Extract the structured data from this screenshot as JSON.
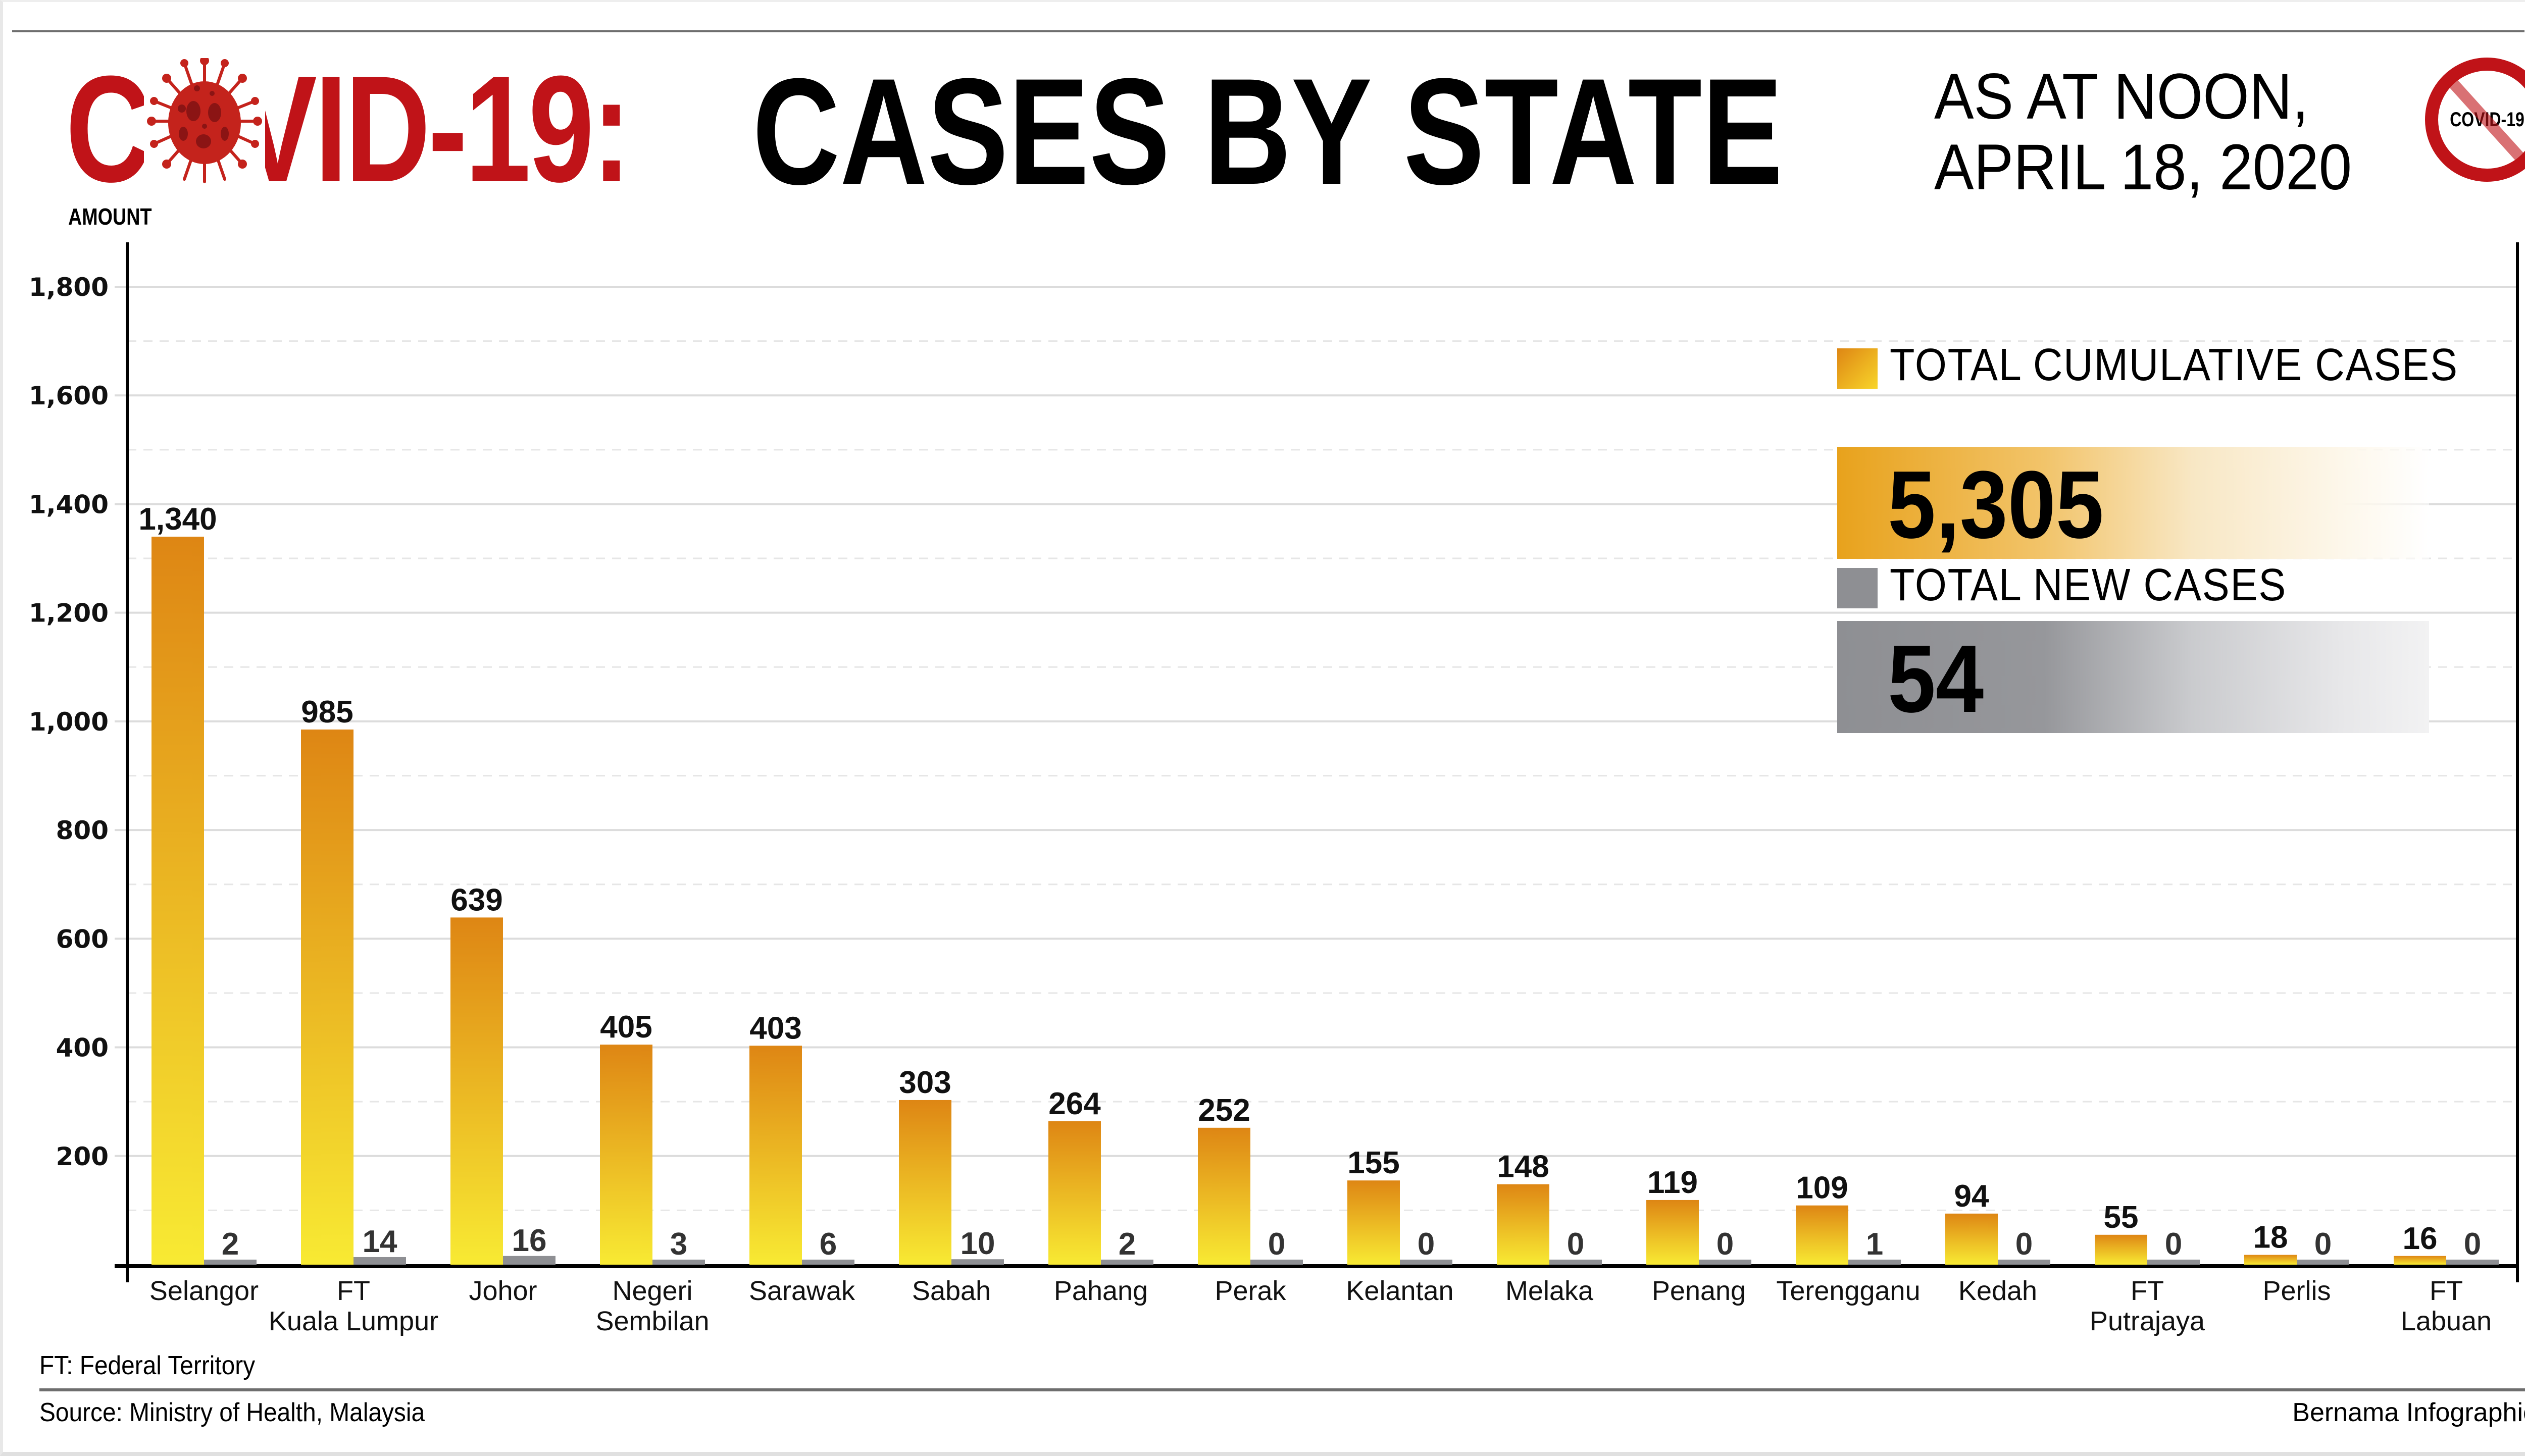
{
  "header": {
    "title_covid": "COVID-19:",
    "title_main": "CASES BY STATE",
    "date_line1": "AS AT NOON,",
    "date_line2": "APRIL 18, 2020",
    "badge_text": "COVID-19",
    "badge_icon": "no-covid-icon",
    "virus_icon": "virus-icon"
  },
  "legend": {
    "cumulative": {
      "label": "TOTAL CUMULATIVE CASES",
      "value": "5,305",
      "color": "#e8a21c"
    },
    "new": {
      "label": "TOTAL NEW CASES",
      "value": "54",
      "color": "#8e8f93"
    }
  },
  "footer": {
    "note": "FT: Federal Territory",
    "source": "Source: Ministry of Health, Malaysia",
    "credit": "Bernama Infographics"
  },
  "colors": {
    "title_red": "#c01318",
    "bar_top": "#de8614",
    "bar_bottom": "#f8ea33",
    "new_bar": "#8e8f93",
    "grid": "#dcdcdc"
  },
  "chart_data": {
    "type": "bar",
    "title": "COVID-19: CASES BY STATE",
    "ylabel": "AMOUNT",
    "xlabel": "",
    "ylim": [
      0,
      1800
    ],
    "yticks": [
      200,
      400,
      600,
      800,
      1000,
      1200,
      1400,
      1600,
      1800
    ],
    "ytick_labels": [
      "200",
      "400",
      "600",
      "800",
      "1,000",
      "1,200",
      "1,400",
      "1,600",
      "1,800"
    ],
    "grid": true,
    "legend_position": "top-right",
    "categories": [
      [
        "Selangor"
      ],
      [
        "FT",
        "Kuala Lumpur"
      ],
      [
        "Johor"
      ],
      [
        "Negeri",
        "Sembilan"
      ],
      [
        "Sarawak"
      ],
      [
        "Sabah"
      ],
      [
        "Pahang"
      ],
      [
        "Perak"
      ],
      [
        "Kelantan"
      ],
      [
        "Melaka"
      ],
      [
        "Penang"
      ],
      [
        "Terengganu"
      ],
      [
        "Kedah"
      ],
      [
        "FT",
        "Putrajaya"
      ],
      [
        "Perlis"
      ],
      [
        "FT",
        "Labuan"
      ]
    ],
    "series": [
      {
        "name": "Total cumulative cases",
        "values": [
          1340,
          985,
          639,
          405,
          403,
          303,
          264,
          252,
          155,
          148,
          119,
          109,
          94,
          55,
          18,
          16
        ],
        "labels": [
          "1,340",
          "985",
          "639",
          "405",
          "403",
          "303",
          "264",
          "252",
          "155",
          "148",
          "119",
          "109",
          "94",
          "55",
          "18",
          "16"
        ]
      },
      {
        "name": "Total new cases",
        "values": [
          2,
          14,
          16,
          3,
          6,
          10,
          2,
          0,
          0,
          0,
          0,
          1,
          0,
          0,
          0,
          0
        ],
        "labels": [
          "2",
          "14",
          "16",
          "3",
          "6",
          "10",
          "2",
          "0",
          "0",
          "0",
          "0",
          "1",
          "0",
          "0",
          "0",
          "0"
        ]
      }
    ]
  }
}
